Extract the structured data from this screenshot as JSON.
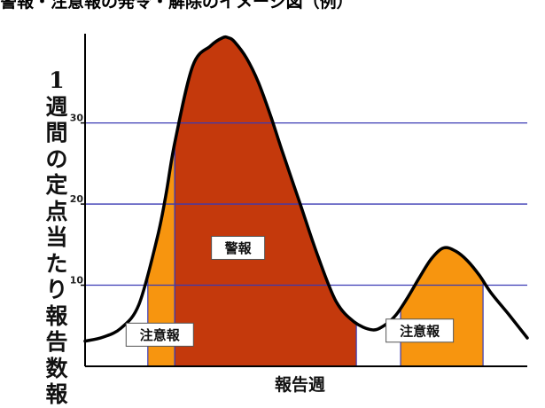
{
  "caption": "警報・注意報の発令・解除のイメージ図（例）",
  "chart_data": {
    "type": "area",
    "title": "",
    "ylabel": "1週間の定点当たり報告数報",
    "xlabel": "報告週",
    "ylim": [
      0,
      41
    ],
    "yticks": [
      10,
      20,
      30
    ],
    "grid": true,
    "grid_color": "#3a3ab4",
    "curve": {
      "x": [
        0,
        3,
        6,
        9,
        12,
        13.5,
        15,
        18,
        21,
        23,
        24,
        25,
        27,
        29,
        31,
        33,
        36,
        39,
        42,
        45,
        48,
        50,
        52,
        54,
        56,
        58,
        60,
        62,
        64,
        66,
        68,
        71,
        74
      ],
      "y": [
        3.1,
        3.6,
        4.7,
        7.6,
        15.6,
        21,
        27.5,
        37,
        39.5,
        40.5,
        40.5,
        40,
        38,
        35,
        31,
        26.5,
        20,
        13.5,
        8,
        5.5,
        4.5,
        5,
        6.3,
        8.5,
        11,
        13.3,
        14.6,
        14.2,
        13,
        11.2,
        9,
        6.3,
        3.5
      ]
    },
    "regions": [
      {
        "label": "注意報",
        "x_start": 10.5,
        "x_end": 15.0,
        "level": "注意報",
        "color": "#f7950f"
      },
      {
        "label": "警報",
        "x_start": 15.0,
        "x_end": 45.4,
        "level": "警報",
        "color": "#c4390c"
      },
      {
        "label": "注意報",
        "x_start": 52.8,
        "x_end": 66.6,
        "level": "注意報",
        "color": "#f7950f"
      }
    ],
    "colors": {
      "curve": "#000000",
      "attention": "#f7950f",
      "warning": "#c4390c",
      "axis": "#000000"
    }
  },
  "labels": {
    "attention_left": "注意報",
    "warning": "警報",
    "attention_right": "注意報"
  }
}
